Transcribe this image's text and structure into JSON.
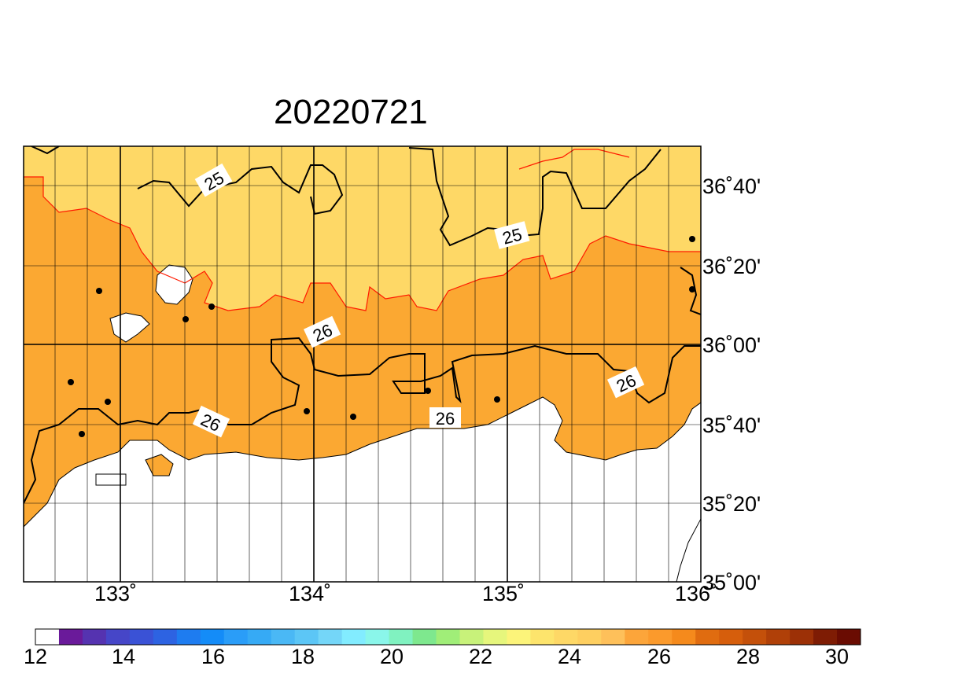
{
  "title": "20220721",
  "axes": {
    "lat_labels": [
      "36˚40'",
      "36˚20'",
      "36˚00'",
      "35˚40'",
      "35˚20'",
      "35˚00'"
    ],
    "lon_labels": [
      "133˚",
      "134˚",
      "135˚",
      "136˚"
    ]
  },
  "contours": {
    "labels": [
      "25",
      "25",
      "26",
      "26",
      "26",
      "26"
    ]
  },
  "colorbar": {
    "tick_labels": [
      "12",
      "14",
      "16",
      "18",
      "20",
      "22",
      "24",
      "26",
      "28",
      "30"
    ],
    "colors": [
      "#ffffff",
      "#6a1a9a",
      "#5533b0",
      "#4646c8",
      "#3a52d6",
      "#2d63e2",
      "#1e7cf0",
      "#148cf8",
      "#2a9df8",
      "#36aaf5",
      "#4ab8f5",
      "#5cc6f6",
      "#74d6f8",
      "#82ecff",
      "#8af6ea",
      "#80f2c0",
      "#7ee88e",
      "#a0ee78",
      "#c8f27a",
      "#e6f67c",
      "#fcf47a",
      "#fde46c",
      "#fed866",
      "#fecf60",
      "#fec05a",
      "#fca53a",
      "#fb9a2c",
      "#f58a1c",
      "#e06c10",
      "#d65e0c",
      "#c4500a",
      "#b04008",
      "#9c3006",
      "#7e1c04",
      "#6a0c02"
    ]
  },
  "colors": {
    "light_band": "#fed866",
    "warm_band": "#fba832",
    "land_outline": "#000000",
    "contour_24_5": "#ff1a00"
  }
}
